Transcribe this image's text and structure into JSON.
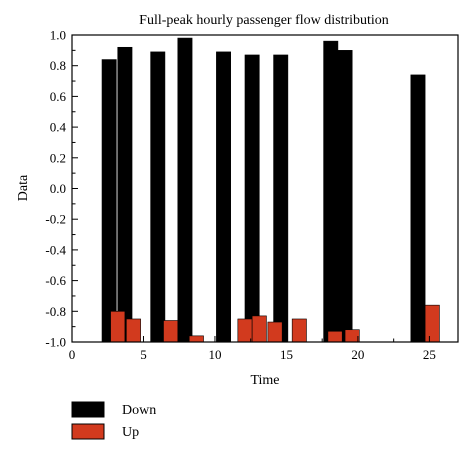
{
  "chart_data": {
    "type": "bar",
    "title": "Full-peak hourly passenger flow distribution",
    "xlabel": "Time",
    "ylabel": "Data",
    "xlim": [
      0,
      27
    ],
    "ylim": [
      -1.0,
      1.0
    ],
    "xticks": [
      "0",
      "5",
      "10",
      "15",
      "20",
      "25"
    ],
    "xtick_values": [
      0,
      5,
      10,
      15,
      20,
      25
    ],
    "yticks": [
      "1.0",
      "0.8",
      "0.6",
      "0.4",
      "0.2",
      "0.0",
      "-0.2",
      "-0.4",
      "-0.6",
      "-0.8",
      "-1.0"
    ],
    "ytick_values": [
      1.0,
      0.8,
      0.6,
      0.4,
      0.2,
      0.0,
      -0.2,
      -0.4,
      -0.6,
      -0.8,
      -1.0
    ],
    "bar_width": 1.0,
    "grid": false,
    "legend_position": "bottom-left",
    "series": [
      {
        "name": "Down",
        "color": "#000000",
        "x": [
          2.6,
          3.7,
          6.0,
          7.9,
          10.6,
          12.6,
          14.6,
          18.1,
          19.1,
          24.2
        ],
        "values": [
          0.84,
          0.92,
          0.89,
          0.98,
          0.89,
          0.87,
          0.87,
          0.96,
          0.9,
          0.74
        ]
      },
      {
        "name": "Up",
        "color": "#d23a1e",
        "x": [
          3.2,
          4.3,
          6.9,
          8.7,
          12.1,
          13.1,
          14.2,
          15.9,
          18.4,
          19.6,
          25.2
        ],
        "values": [
          -0.8,
          -0.85,
          -0.86,
          -0.96,
          -0.85,
          -0.83,
          -0.87,
          -0.85,
          -0.93,
          -0.92,
          -0.76
        ]
      }
    ]
  }
}
